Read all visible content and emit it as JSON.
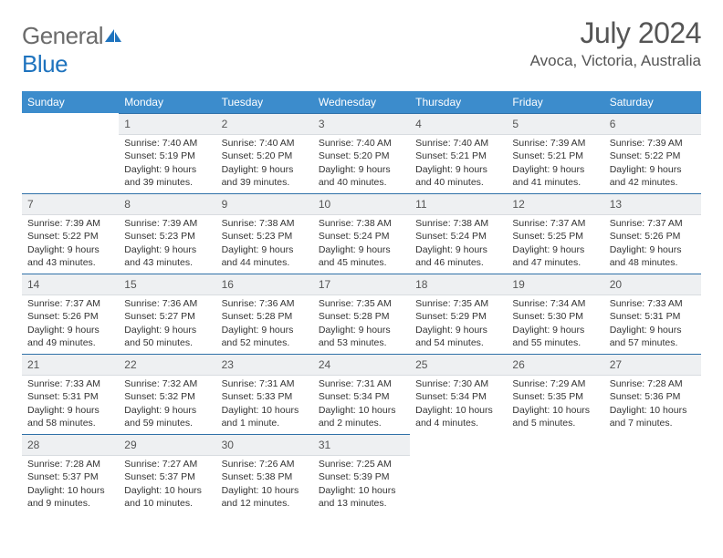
{
  "logo": {
    "general": "General",
    "blue": "Blue"
  },
  "title": "July 2024",
  "location": "Avoca, Victoria, Australia",
  "colors": {
    "header_bg": "#3c8ccc",
    "daynum_bg": "#eef0f2",
    "daynum_border_top": "#2f71a8",
    "logo_gray": "#6b6b6b",
    "logo_blue": "#1e73be",
    "text": "#333333"
  },
  "columns": [
    "Sunday",
    "Monday",
    "Tuesday",
    "Wednesday",
    "Thursday",
    "Friday",
    "Saturday"
  ],
  "weeks": [
    [
      null,
      {
        "d": "1",
        "sr": "7:40 AM",
        "ss": "5:19 PM",
        "dl": "9 hours and 39 minutes."
      },
      {
        "d": "2",
        "sr": "7:40 AM",
        "ss": "5:20 PM",
        "dl": "9 hours and 39 minutes."
      },
      {
        "d": "3",
        "sr": "7:40 AM",
        "ss": "5:20 PM",
        "dl": "9 hours and 40 minutes."
      },
      {
        "d": "4",
        "sr": "7:40 AM",
        "ss": "5:21 PM",
        "dl": "9 hours and 40 minutes."
      },
      {
        "d": "5",
        "sr": "7:39 AM",
        "ss": "5:21 PM",
        "dl": "9 hours and 41 minutes."
      },
      {
        "d": "6",
        "sr": "7:39 AM",
        "ss": "5:22 PM",
        "dl": "9 hours and 42 minutes."
      }
    ],
    [
      {
        "d": "7",
        "sr": "7:39 AM",
        "ss": "5:22 PM",
        "dl": "9 hours and 43 minutes."
      },
      {
        "d": "8",
        "sr": "7:39 AM",
        "ss": "5:23 PM",
        "dl": "9 hours and 43 minutes."
      },
      {
        "d": "9",
        "sr": "7:38 AM",
        "ss": "5:23 PM",
        "dl": "9 hours and 44 minutes."
      },
      {
        "d": "10",
        "sr": "7:38 AM",
        "ss": "5:24 PM",
        "dl": "9 hours and 45 minutes."
      },
      {
        "d": "11",
        "sr": "7:38 AM",
        "ss": "5:24 PM",
        "dl": "9 hours and 46 minutes."
      },
      {
        "d": "12",
        "sr": "7:37 AM",
        "ss": "5:25 PM",
        "dl": "9 hours and 47 minutes."
      },
      {
        "d": "13",
        "sr": "7:37 AM",
        "ss": "5:26 PM",
        "dl": "9 hours and 48 minutes."
      }
    ],
    [
      {
        "d": "14",
        "sr": "7:37 AM",
        "ss": "5:26 PM",
        "dl": "9 hours and 49 minutes."
      },
      {
        "d": "15",
        "sr": "7:36 AM",
        "ss": "5:27 PM",
        "dl": "9 hours and 50 minutes."
      },
      {
        "d": "16",
        "sr": "7:36 AM",
        "ss": "5:28 PM",
        "dl": "9 hours and 52 minutes."
      },
      {
        "d": "17",
        "sr": "7:35 AM",
        "ss": "5:28 PM",
        "dl": "9 hours and 53 minutes."
      },
      {
        "d": "18",
        "sr": "7:35 AM",
        "ss": "5:29 PM",
        "dl": "9 hours and 54 minutes."
      },
      {
        "d": "19",
        "sr": "7:34 AM",
        "ss": "5:30 PM",
        "dl": "9 hours and 55 minutes."
      },
      {
        "d": "20",
        "sr": "7:33 AM",
        "ss": "5:31 PM",
        "dl": "9 hours and 57 minutes."
      }
    ],
    [
      {
        "d": "21",
        "sr": "7:33 AM",
        "ss": "5:31 PM",
        "dl": "9 hours and 58 minutes."
      },
      {
        "d": "22",
        "sr": "7:32 AM",
        "ss": "5:32 PM",
        "dl": "9 hours and 59 minutes."
      },
      {
        "d": "23",
        "sr": "7:31 AM",
        "ss": "5:33 PM",
        "dl": "10 hours and 1 minute."
      },
      {
        "d": "24",
        "sr": "7:31 AM",
        "ss": "5:34 PM",
        "dl": "10 hours and 2 minutes."
      },
      {
        "d": "25",
        "sr": "7:30 AM",
        "ss": "5:34 PM",
        "dl": "10 hours and 4 minutes."
      },
      {
        "d": "26",
        "sr": "7:29 AM",
        "ss": "5:35 PM",
        "dl": "10 hours and 5 minutes."
      },
      {
        "d": "27",
        "sr": "7:28 AM",
        "ss": "5:36 PM",
        "dl": "10 hours and 7 minutes."
      }
    ],
    [
      {
        "d": "28",
        "sr": "7:28 AM",
        "ss": "5:37 PM",
        "dl": "10 hours and 9 minutes."
      },
      {
        "d": "29",
        "sr": "7:27 AM",
        "ss": "5:37 PM",
        "dl": "10 hours and 10 minutes."
      },
      {
        "d": "30",
        "sr": "7:26 AM",
        "ss": "5:38 PM",
        "dl": "10 hours and 12 minutes."
      },
      {
        "d": "31",
        "sr": "7:25 AM",
        "ss": "5:39 PM",
        "dl": "10 hours and 13 minutes."
      },
      null,
      null,
      null
    ]
  ],
  "labels": {
    "sunrise": "Sunrise:",
    "sunset": "Sunset:",
    "daylight": "Daylight:"
  }
}
